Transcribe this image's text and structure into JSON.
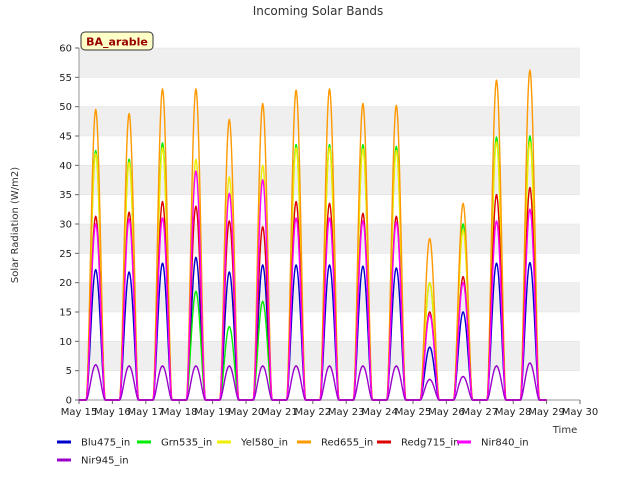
{
  "chart_data": {
    "type": "line",
    "title": "Incoming Solar Bands",
    "xlabel": "Time",
    "ylabel": "Solar Radiation (W/m2)",
    "site_label": "BA_arable",
    "ylim": [
      0,
      60
    ],
    "yticks": [
      0,
      5,
      10,
      15,
      20,
      25,
      30,
      35,
      40,
      45,
      50,
      55,
      60
    ],
    "xlim": [
      15,
      30
    ],
    "xticks": [
      {
        "value": 15,
        "label": "May 15"
      },
      {
        "value": 16,
        "label": "May 16"
      },
      {
        "value": 17,
        "label": "May 17"
      },
      {
        "value": 18,
        "label": "May 18"
      },
      {
        "value": 19,
        "label": "May 19"
      },
      {
        "value": 20,
        "label": "May 20"
      },
      {
        "value": 21,
        "label": "May 21"
      },
      {
        "value": 22,
        "label": "May 22"
      },
      {
        "value": 23,
        "label": "May 23"
      },
      {
        "value": 24,
        "label": "May 24"
      },
      {
        "value": 25,
        "label": "May 25"
      },
      {
        "value": 26,
        "label": "May 26"
      },
      {
        "value": 27,
        "label": "May 27"
      },
      {
        "value": 28,
        "label": "May 28"
      },
      {
        "value": 29,
        "label": "May 29"
      },
      {
        "value": 30,
        "label": "May 30"
      }
    ],
    "days": [
      15,
      16,
      17,
      18,
      19,
      20,
      21,
      22,
      23,
      24,
      25,
      26,
      27,
      28
    ],
    "series": [
      {
        "name": "Blu475_in",
        "color": "#0000cc",
        "daily_peaks": [
          22.2,
          21.8,
          23.3,
          24.3,
          21.8,
          23.0,
          23.0,
          23.0,
          22.8,
          22.5,
          9.0,
          15.0,
          23.3,
          23.4
        ]
      },
      {
        "name": "Grn535_in",
        "color": "#00ee00",
        "daily_peaks": [
          42.5,
          41.0,
          43.8,
          18.5,
          12.5,
          16.8,
          43.5,
          43.5,
          43.5,
          43.2,
          20.0,
          30.0,
          44.8,
          45.0
        ]
      },
      {
        "name": "Yel580_in",
        "color": "#eeee00",
        "daily_peaks": [
          42.0,
          40.5,
          43.0,
          41.0,
          38.0,
          40.0,
          43.0,
          43.0,
          42.8,
          42.5,
          20.0,
          29.0,
          44.0,
          44.0
        ]
      },
      {
        "name": "Red655_in",
        "color": "#ff9900",
        "daily_peaks": [
          49.5,
          48.8,
          53.0,
          53.0,
          47.8,
          50.5,
          52.8,
          53.0,
          50.5,
          50.2,
          27.5,
          33.5,
          54.5,
          56.2
        ]
      },
      {
        "name": "Redg715_in",
        "color": "#dd0000",
        "daily_peaks": [
          31.3,
          32.0,
          33.8,
          33.0,
          30.5,
          29.5,
          33.8,
          33.5,
          31.8,
          31.3,
          15.0,
          21.0,
          35.0,
          36.2
        ]
      },
      {
        "name": "Nir840_in",
        "color": "#ff00ff",
        "daily_peaks": [
          30.0,
          30.8,
          31.0,
          39.0,
          35.2,
          37.5,
          31.0,
          31.0,
          30.5,
          30.3,
          14.5,
          20.0,
          30.5,
          32.5
        ]
      },
      {
        "name": "Nir945_in",
        "color": "#9900cc",
        "daily_peaks": [
          6.0,
          5.8,
          5.8,
          5.8,
          5.8,
          5.8,
          5.8,
          5.8,
          5.8,
          5.8,
          3.5,
          4.0,
          5.8,
          6.3
        ]
      }
    ],
    "legend_position": "bottom",
    "grid": "horizontal bands"
  }
}
